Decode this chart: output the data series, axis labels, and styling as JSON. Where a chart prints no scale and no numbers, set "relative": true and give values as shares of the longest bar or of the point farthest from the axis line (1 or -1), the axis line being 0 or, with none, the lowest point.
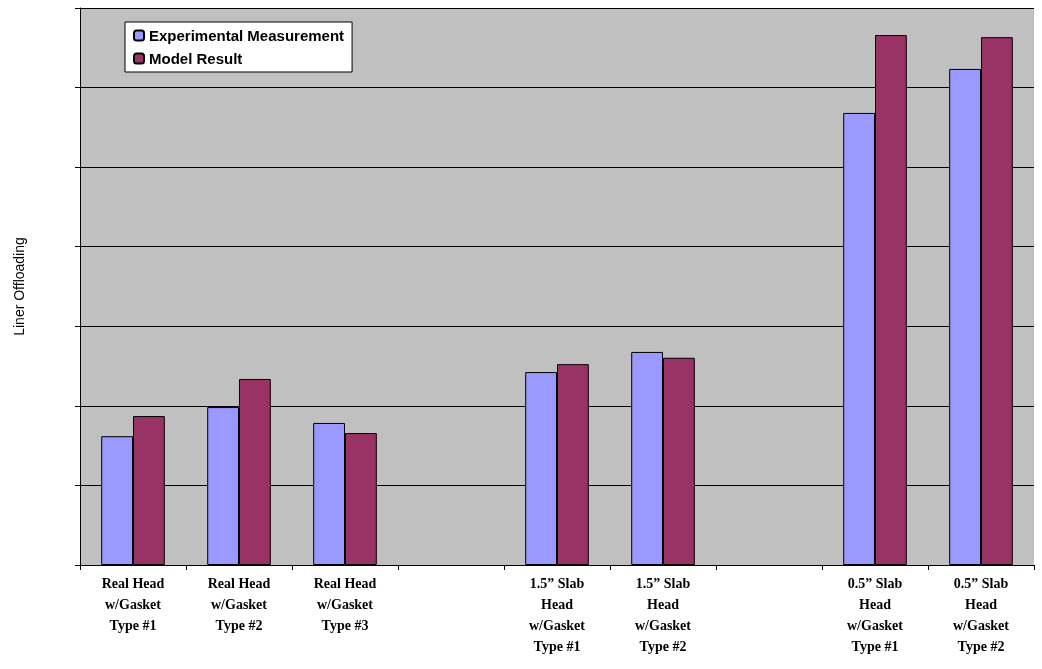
{
  "chart_data": {
    "type": "bar",
    "ylabel": "Liner Offloading",
    "relative": true,
    "grid": "y",
    "legend": "top left",
    "categories": [
      "Real Head\nw/Gasket\nType #1",
      "Real Head\nw/Gasket\nType #2",
      "Real Head\nw/Gasket\nType #3",
      null,
      "1.5” Slab\nHead\nw/Gasket\nType #1",
      "1.5” Slab\nHead\nw/Gasket\nType #2",
      null,
      "0.5” Slab\nHead\nw/Gasket\nType #1",
      "0.5” Slab\nHead\nw/Gasket\nType #2"
    ],
    "series": [
      {
        "name": "Experimental Measurement",
        "color": "#9999ff",
        "values": [
          0.243,
          0.298,
          0.268,
          null,
          0.364,
          0.402,
          null,
          0.853,
          0.936
        ]
      },
      {
        "name": "Model Result",
        "color": "#993366",
        "values": [
          0.281,
          0.351,
          0.249,
          null,
          0.379,
          0.391,
          null,
          1,
          0.996
        ]
      }
    ]
  }
}
